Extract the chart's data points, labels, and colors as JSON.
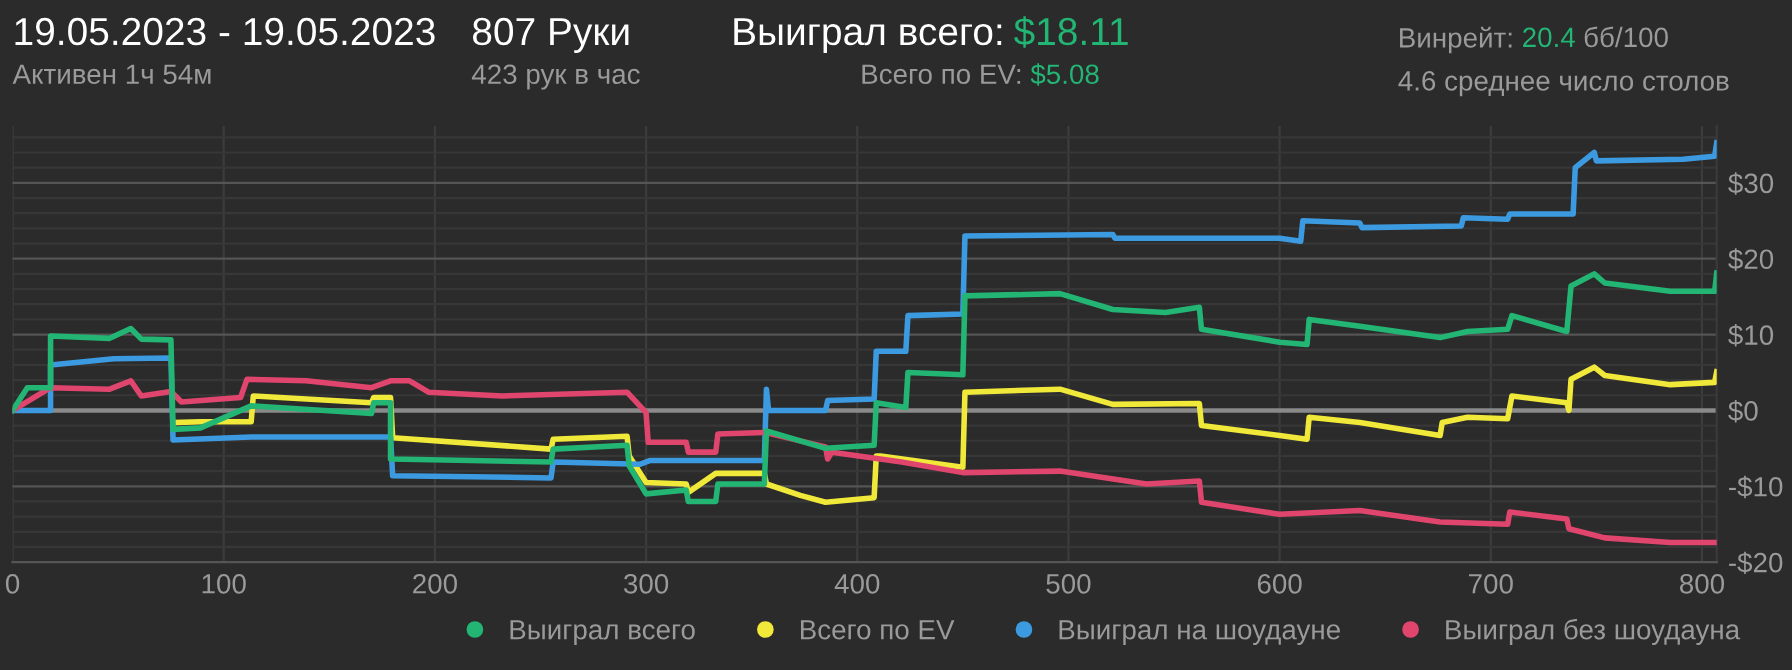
{
  "chart_data": {
    "type": "line",
    "title": "19.05.2023 - 19.05.2023",
    "subtitle": "Активен 1ч 54м",
    "annotations": [
      "807 Руки",
      "423 рук в час",
      "Выиграл всего:",
      "$18.11",
      "Всего по EV:",
      "$5.08",
      "Винрейт:",
      "20.4",
      "бб/100",
      "4.6 среднее число столов"
    ],
    "xlim": [
      0,
      807
    ],
    "ylim": [
      -20,
      37.5
    ],
    "xticks": [
      0,
      100,
      200,
      300,
      400,
      500,
      600,
      700,
      800
    ],
    "yticks": [
      {
        "value": -20,
        "label": "-$20"
      },
      {
        "value": -18,
        "label": null
      },
      {
        "value": -16,
        "label": null
      },
      {
        "value": -14,
        "label": null
      },
      {
        "value": -12,
        "label": null
      },
      {
        "value": -10,
        "label": "-$10"
      },
      {
        "value": -8,
        "label": null
      },
      {
        "value": -6,
        "label": null
      },
      {
        "value": -4,
        "label": null
      },
      {
        "value": -2,
        "label": null
      },
      {
        "value": 0,
        "label": "$0"
      },
      {
        "value": 2,
        "label": null
      },
      {
        "value": 4,
        "label": null
      },
      {
        "value": 6,
        "label": null
      },
      {
        "value": 8,
        "label": null
      },
      {
        "value": 10,
        "label": "$10"
      },
      {
        "value": 12,
        "label": null
      },
      {
        "value": 14,
        "label": null
      },
      {
        "value": 16,
        "label": null
      },
      {
        "value": 18,
        "label": null
      },
      {
        "value": 20,
        "label": "$20"
      },
      {
        "value": 22,
        "label": null
      },
      {
        "value": 24,
        "label": null
      },
      {
        "value": 26,
        "label": null
      },
      {
        "value": 28,
        "label": null
      },
      {
        "value": 30,
        "label": "$30"
      },
      {
        "value": 32,
        "label": null
      },
      {
        "value": 34,
        "label": null
      },
      {
        "value": 36,
        "label": null
      }
    ],
    "grid": true,
    "legend": "bottom",
    "marker": "none",
    "line_style": "solid",
    "ref_lines": [
      {
        "axis": "y",
        "value": 0,
        "color": "#8a8a8a"
      }
    ],
    "series": [
      {
        "name": "Выиграл всего",
        "color": "#22b573",
        "x": [
          0,
          7,
          18,
          18,
          46,
          56,
          61,
          75,
          76,
          89,
          113,
          113,
          170,
          171,
          179,
          179,
          255,
          256,
          291,
          292,
          300,
          319,
          320,
          333,
          334,
          356,
          357,
          385,
          408,
          409,
          423,
          424,
          450,
          451,
          496,
          521,
          546,
          562,
          563,
          600,
          613,
          614,
          638,
          676,
          689,
          708,
          710,
          736,
          738,
          749,
          754,
          785,
          806,
          807
        ],
        "values": [
          0,
          3,
          3,
          9.8,
          9.5,
          10.8,
          9.4,
          9.3,
          -2.5,
          -2.3,
          0.6,
          0.6,
          -0.4,
          1,
          1,
          -6.4,
          -6.8,
          -5.1,
          -4.6,
          -7.3,
          -11,
          -10.5,
          -12,
          -12,
          -9.7,
          -9.7,
          -2.7,
          -5,
          -4.6,
          1,
          0.4,
          5,
          4.7,
          15.1,
          15.4,
          13.3,
          12.9,
          13.6,
          10.7,
          9,
          8.7,
          12,
          11.1,
          9.6,
          10.4,
          10.7,
          12.5,
          10.4,
          16.4,
          18,
          16.8,
          15.7,
          15.7,
          18.1
        ]
      },
      {
        "name": "Всего по EV",
        "color": "#f0e93a",
        "x": [
          76,
          89,
          113,
          114,
          170,
          171,
          179,
          180,
          255,
          256,
          291,
          292,
          300,
          319,
          320,
          333,
          356,
          357,
          373,
          385,
          408,
          409,
          411,
          450,
          451,
          496,
          521,
          562,
          563,
          600,
          613,
          614,
          638,
          676,
          677,
          689,
          708,
          710,
          736,
          737,
          738,
          749,
          754,
          785,
          806,
          807
        ],
        "values": [
          -1.6,
          -1.5,
          -1.5,
          1.9,
          1,
          1.7,
          1.7,
          -3.6,
          -5.1,
          -3.8,
          -3.4,
          -6,
          -9.5,
          -9.7,
          -10.8,
          -8.3,
          -8.3,
          -9.7,
          -11.2,
          -12.1,
          -11.5,
          -6,
          -6,
          -7.5,
          2.4,
          2.8,
          0.8,
          0.9,
          -2,
          -3.3,
          -3.8,
          -0.9,
          -1.6,
          -3.3,
          -1.6,
          -0.9,
          -1.1,
          1.9,
          1,
          0,
          4.1,
          5.7,
          4.6,
          3.4,
          3.7,
          5.1
        ]
      },
      {
        "name": "Выиграл на шоудауне",
        "color": "#3c9be0",
        "x": [
          0,
          18,
          18,
          48,
          75,
          76,
          113,
          179,
          180,
          255,
          256,
          297,
          302,
          356,
          357,
          358,
          385,
          386,
          408,
          409,
          423,
          424,
          450,
          451,
          521,
          522,
          600,
          610,
          611,
          638,
          639,
          686,
          687,
          708,
          709,
          739,
          740,
          749,
          750,
          791,
          806,
          807
        ],
        "values": [
          0,
          0,
          6,
          6.8,
          6.9,
          -3.9,
          -3.5,
          -3.5,
          -8.6,
          -8.9,
          -6.8,
          -7.1,
          -6.6,
          -6.6,
          2.8,
          0,
          0,
          1.3,
          1.5,
          7.8,
          7.8,
          12.5,
          12.7,
          23,
          23.2,
          22.7,
          22.7,
          22.3,
          25,
          24.7,
          24.1,
          24.3,
          25.4,
          25.2,
          25.9,
          25.9,
          32,
          34,
          32.9,
          33.1,
          33.5,
          35.3
        ]
      },
      {
        "name": "Выиграл без шоудауна",
        "color": "#e0456e",
        "x": [
          0,
          18,
          46,
          56,
          61,
          75,
          80,
          108,
          111,
          139,
          170,
          179,
          188,
          197,
          232,
          291,
          300,
          301,
          319,
          320,
          333,
          334,
          356,
          385,
          386,
          388,
          421,
          450,
          496,
          537,
          562,
          563,
          600,
          638,
          676,
          708,
          709,
          736,
          737,
          754,
          785,
          807
        ],
        "values": [
          0,
          3,
          2.8,
          3.9,
          1.9,
          2.5,
          1.1,
          1.7,
          4.1,
          3.9,
          3,
          3.9,
          3.9,
          2.4,
          1.9,
          2.4,
          -0.3,
          -4.2,
          -4.2,
          -5.5,
          -5.5,
          -3.1,
          -2.9,
          -4.8,
          -6.4,
          -5.5,
          -6.8,
          -8.2,
          -8,
          -9.7,
          -9.3,
          -12.1,
          -13.7,
          -13.2,
          -14.7,
          -15,
          -13.4,
          -14.3,
          -15.6,
          -16.8,
          -17.4,
          -17.4
        ]
      }
    ]
  }
}
